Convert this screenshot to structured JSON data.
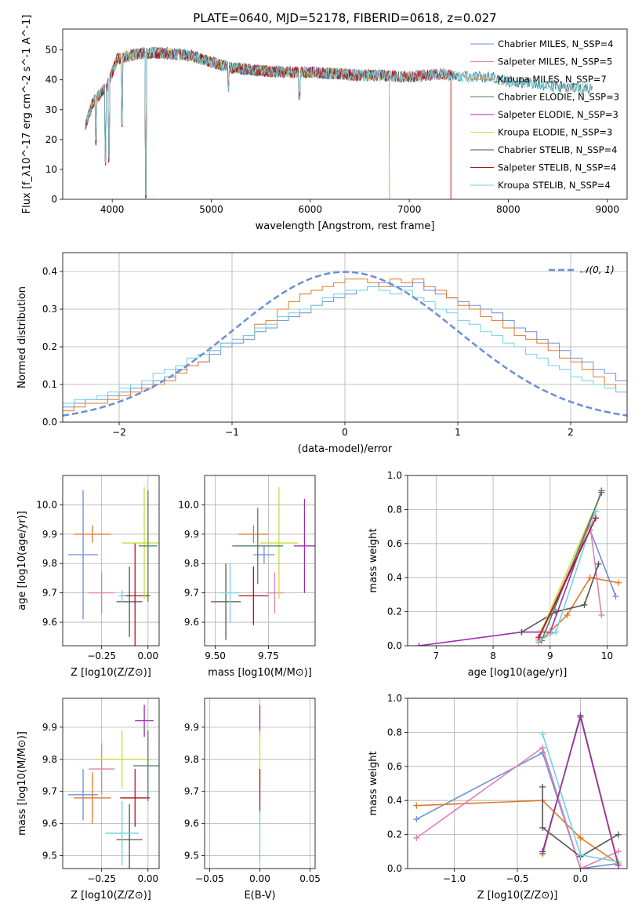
{
  "figure_title": "PLATE=0640, MJD=52178, FIBERID=0618, z=0.027",
  "colors": {
    "Chabrier MILES": "#6f8fd6",
    "Salpeter MILES": "#e37fb1",
    "Kroupa MILES": "#e0792a",
    "Chabrier ELODIE": "#4f7f5f",
    "Salpeter ELODIE": "#a12ab3",
    "Kroupa ELODIE": "#ccdb3d",
    "Chabrier STELIB": "#555555",
    "Salpeter STELIB": "#b3121a",
    "Kroupa STELIB": "#71d3de",
    "gaussian": "#6a8fd8",
    "grid": "#b0b0b0"
  },
  "chart_data": [
    {
      "type": "line",
      "id": "spectrum",
      "xlabel": "wavelength [Angstrom, rest frame]",
      "ylabel": "Flux [f_λ10^-17 erg cm^-2 s^-1 A^-1]",
      "xlim": [
        3500,
        9200
      ],
      "ylim": [
        0,
        57
      ],
      "xticks": [
        4000,
        5000,
        6000,
        7000,
        8000,
        9000
      ],
      "yticks": [
        0,
        10,
        20,
        30,
        40,
        50
      ],
      "grid": false,
      "legend_position": "top-right",
      "series": [
        {
          "name": "Chabrier MILES, N_SSP=4",
          "x_end": 7420
        },
        {
          "name": "Salpeter MILES, N_SSP=5",
          "x_end": 7420
        },
        {
          "name": "Kroupa MILES, N_SSP=7",
          "x_end": 7420
        },
        {
          "name": "Chabrier ELODIE, N_SSP=3",
          "x_end": 6800
        },
        {
          "name": "Salpeter ELODIE, N_SSP=3",
          "x_end": 6800
        },
        {
          "name": "Kroupa ELODIE, N_SSP=3",
          "x_end": 6800
        },
        {
          "name": "Chabrier STELIB, N_SSP=4",
          "x_end": 8850
        },
        {
          "name": "Salpeter STELIB, N_SSP=4",
          "x_end": 7420
        },
        {
          "name": "Kroupa STELIB, N_SSP=4",
          "x_end": 8850
        }
      ],
      "profile": {
        "x": [
          3730,
          3800,
          3950,
          4050,
          4300,
          4500,
          4800,
          5000,
          5200,
          5500,
          5800,
          6000,
          6300,
          6500,
          6700,
          7000,
          7300,
          7500,
          7800,
          8000,
          8300,
          8600,
          8850
        ],
        "y": [
          25,
          32,
          38,
          47,
          49,
          49,
          48,
          46,
          44,
          43,
          42.5,
          42.5,
          42,
          41.5,
          41.5,
          41,
          42,
          41,
          41,
          39.5,
          38.5,
          37.5,
          37
        ]
      },
      "absorption_lines": [
        {
          "x": 3933,
          "y": 11
        },
        {
          "x": 3968,
          "y": 12
        },
        {
          "x": 4101,
          "y": 24
        },
        {
          "x": 4340,
          "y": 0
        },
        {
          "x": 5175,
          "y": 36
        },
        {
          "x": 5890,
          "y": 33
        },
        {
          "x": 3835,
          "y": 18
        }
      ]
    },
    {
      "type": "histogram",
      "id": "residuals",
      "xlabel": "(data-model)/error",
      "ylabel": "Normed distribution",
      "xlim": [
        -2.5,
        2.5
      ],
      "ylim": [
        0,
        0.45
      ],
      "xticks": [
        -2,
        -1,
        0,
        1,
        2
      ],
      "yticks": [
        0.0,
        0.1,
        0.2,
        0.3,
        0.4
      ],
      "grid": true,
      "legend_position": "top-right",
      "reference_curve": {
        "name": "𝒩(0, 1)",
        "mean": 0,
        "sigma": 1
      },
      "bin_width": 0.1,
      "bins_from": -2.5,
      "series_values": {
        "Chabrier MILES": [
          0.04,
          0.05,
          0.06,
          0.06,
          0.07,
          0.08,
          0.09,
          0.1,
          0.11,
          0.12,
          0.14,
          0.15,
          0.16,
          0.18,
          0.2,
          0.21,
          0.22,
          0.24,
          0.25,
          0.27,
          0.28,
          0.29,
          0.31,
          0.32,
          0.33,
          0.34,
          0.35,
          0.36,
          0.37,
          0.36,
          0.36,
          0.37,
          0.35,
          0.34,
          0.33,
          0.32,
          0.31,
          0.3,
          0.29,
          0.27,
          0.25,
          0.24,
          0.22,
          0.21,
          0.19,
          0.17,
          0.16,
          0.14,
          0.13,
          0.11
        ],
        "Kroupa MILES": [
          0.03,
          0.04,
          0.05,
          0.05,
          0.06,
          0.07,
          0.08,
          0.09,
          0.1,
          0.11,
          0.13,
          0.15,
          0.16,
          0.19,
          0.21,
          0.22,
          0.23,
          0.26,
          0.27,
          0.3,
          0.32,
          0.34,
          0.35,
          0.36,
          0.37,
          0.38,
          0.38,
          0.37,
          0.36,
          0.38,
          0.37,
          0.38,
          0.36,
          0.35,
          0.33,
          0.31,
          0.3,
          0.28,
          0.27,
          0.25,
          0.23,
          0.22,
          0.21,
          0.19,
          0.17,
          0.16,
          0.14,
          0.12,
          0.1,
          0.08
        ],
        "Kroupa STELIB": [
          0.05,
          0.06,
          0.06,
          0.07,
          0.08,
          0.09,
          0.1,
          0.11,
          0.13,
          0.14,
          0.15,
          0.17,
          0.18,
          0.19,
          0.21,
          0.22,
          0.23,
          0.25,
          0.26,
          0.28,
          0.29,
          0.3,
          0.31,
          0.33,
          0.34,
          0.35,
          0.35,
          0.36,
          0.35,
          0.34,
          0.35,
          0.33,
          0.32,
          0.3,
          0.29,
          0.27,
          0.26,
          0.24,
          0.23,
          0.21,
          0.2,
          0.18,
          0.17,
          0.15,
          0.14,
          0.12,
          0.11,
          0.1,
          0.09,
          0.08
        ]
      }
    },
    {
      "type": "errorbar",
      "id": "age-vs-Z",
      "xlabel": "Z [log10(Z/Z⊙)]",
      "ylabel": "age [log10(age/yr)]",
      "xlim": [
        -0.46,
        0.06
      ],
      "ylim": [
        9.52,
        10.1
      ],
      "xticks": [
        -0.25,
        0.0
      ],
      "yticks": [
        9.6,
        9.7,
        9.8,
        9.9,
        10.0
      ],
      "grid": true,
      "points": [
        {
          "model": "Chabrier MILES",
          "x": -0.35,
          "xerr": 0.08,
          "y": 9.83,
          "yerr": 0.22
        },
        {
          "model": "Kroupa MILES",
          "x": -0.3,
          "xerr": 0.1,
          "y": 9.9,
          "yerr": 0.03
        },
        {
          "model": "Salpeter MILES",
          "x": -0.25,
          "xerr": 0.07,
          "y": 9.7,
          "yerr": 0.07
        },
        {
          "model": "Chabrier STELIB",
          "x": -0.1,
          "xerr": 0.07,
          "y": 9.67,
          "yerr": 0.12
        },
        {
          "model": "Salpeter STELIB",
          "x": -0.07,
          "xerr": 0.08,
          "y": 9.69,
          "yerr": 0.18
        },
        {
          "model": "Kroupa ELODIE",
          "x": -0.02,
          "xerr": 0.12,
          "y": 9.87,
          "yerr": 0.19
        },
        {
          "model": "Chabrier ELODIE",
          "x": 0.0,
          "xerr": 0.05,
          "y": 9.86,
          "yerr": 0.19
        },
        {
          "model": "Kroupa STELIB",
          "x": -0.14,
          "xerr": 0.02,
          "y": 9.69,
          "yerr": 0.02
        }
      ]
    },
    {
      "type": "errorbar",
      "id": "age-vs-mass",
      "xlabel": "mass [log10(M/M⊙)]",
      "ylabel": "",
      "xlim": [
        9.45,
        9.97
      ],
      "ylim": [
        9.52,
        10.1
      ],
      "xticks": [
        9.5,
        9.75
      ],
      "yticks": [
        9.6,
        9.7,
        9.8,
        9.9,
        10.0
      ],
      "grid": true,
      "points": [
        {
          "model": "Chabrier MILES",
          "x": 9.73,
          "xerr": 0.05,
          "y": 9.83,
          "yerr": 0.03
        },
        {
          "model": "Kroupa MILES",
          "x": 9.68,
          "xerr": 0.07,
          "y": 9.9,
          "yerr": 0.03
        },
        {
          "model": "Salpeter MILES",
          "x": 9.78,
          "xerr": 0.04,
          "y": 9.7,
          "yerr": 0.07
        },
        {
          "model": "Chabrier STELIB",
          "x": 9.55,
          "xerr": 0.07,
          "y": 9.67,
          "yerr": 0.13
        },
        {
          "model": "Salpeter STELIB",
          "x": 9.68,
          "xerr": 0.07,
          "y": 9.69,
          "yerr": 0.1
        },
        {
          "model": "Kroupa ELODIE",
          "x": 9.8,
          "xerr": 0.09,
          "y": 9.87,
          "yerr": 0.19
        },
        {
          "model": "Chabrier ELODIE",
          "x": 9.7,
          "xerr": 0.12,
          "y": 9.86,
          "yerr": 0.13
        },
        {
          "model": "Salpeter ELODIE",
          "x": 9.92,
          "xerr": 0.05,
          "y": 9.86,
          "yerr": 0.16
        },
        {
          "model": "Kroupa STELIB",
          "x": 9.57,
          "xerr": 0.05,
          "y": 9.7,
          "yerr": 0.1
        }
      ]
    },
    {
      "type": "line",
      "id": "weight-vs-age",
      "xlabel": "age [log10(age/yr)]",
      "ylabel": "mass weight",
      "xlim": [
        6.5,
        10.35
      ],
      "ylim": [
        0,
        1.0
      ],
      "xticks": [
        7,
        8,
        9,
        10
      ],
      "yticks": [
        0.0,
        0.2,
        0.4,
        0.6,
        0.8,
        1.0
      ],
      "grid": true,
      "series": [
        {
          "name": "Salpeter ELODIE",
          "x": [
            6.7,
            8.5,
            9.0,
            9.9
          ],
          "y": [
            0.0,
            0.08,
            0.08,
            0.91
          ]
        },
        {
          "name": "Chabrier MILES",
          "x": [
            8.8,
            9.7,
            10.15
          ],
          "y": [
            0.04,
            0.68,
            0.29
          ]
        },
        {
          "name": "Kroupa MILES",
          "x": [
            8.8,
            9.3,
            9.7,
            10.2
          ],
          "y": [
            0.02,
            0.18,
            0.4,
            0.37
          ]
        },
        {
          "name": "Salpeter MILES",
          "x": [
            8.8,
            9.7,
            9.9
          ],
          "y": [
            0.04,
            0.71,
            0.18
          ]
        },
        {
          "name": "Chabrier STELIB",
          "x": [
            8.5,
            9.1,
            9.6,
            9.85
          ],
          "y": [
            0.08,
            0.2,
            0.24,
            0.48
          ]
        },
        {
          "name": "Kroupa ELODIE",
          "x": [
            8.85,
            9.9
          ],
          "y": [
            0.09,
            0.9
          ]
        },
        {
          "name": "Chabrier ELODIE",
          "x": [
            8.85,
            9.9
          ],
          "y": [
            0.03,
            0.9
          ]
        },
        {
          "name": "Kroupa STELIB",
          "x": [
            8.8,
            9.1,
            9.8
          ],
          "y": [
            0.03,
            0.08,
            0.79
          ]
        },
        {
          "name": "Salpeter STELIB",
          "x": [
            8.8,
            9.8
          ],
          "y": [
            0.05,
            0.75
          ]
        }
      ]
    },
    {
      "type": "errorbar",
      "id": "mass-vs-Z",
      "xlabel": "Z [log10(Z/Z⊙)]",
      "ylabel": "mass [log10(M/M⊙)]",
      "xlim": [
        -0.46,
        0.06
      ],
      "ylim": [
        9.46,
        9.99
      ],
      "xticks": [
        -0.25,
        0.0
      ],
      "yticks": [
        9.5,
        9.6,
        9.7,
        9.8,
        9.9
      ],
      "grid": true,
      "points": [
        {
          "model": "Chabrier MILES",
          "x": -0.35,
          "xerr": 0.08,
          "y": 9.69,
          "yerr": 0.08
        },
        {
          "model": "Kroupa MILES",
          "x": -0.3,
          "xerr": 0.1,
          "y": 9.68,
          "yerr": 0.08
        },
        {
          "model": "Salpeter MILES",
          "x": -0.25,
          "xerr": 0.07,
          "y": 9.77,
          "yerr": 0.08
        },
        {
          "model": "Chabrier STELIB",
          "x": -0.1,
          "xerr": 0.07,
          "y": 9.55,
          "yerr": 0.11
        },
        {
          "model": "Salpeter STELIB",
          "x": -0.07,
          "xerr": 0.08,
          "y": 9.68,
          "yerr": 0.09
        },
        {
          "model": "Kroupa ELODIE",
          "x": -0.14,
          "xerr": 0.15,
          "y": 9.8,
          "yerr": 0.09
        },
        {
          "model": "Chabrier ELODIE",
          "x": 0.0,
          "xerr": 0.08,
          "y": 9.78,
          "yerr": 0.11
        },
        {
          "model": "Salpeter ELODIE",
          "x": -0.02,
          "xerr": 0.05,
          "y": 9.92,
          "yerr": 0.05
        },
        {
          "model": "Kroupa STELIB",
          "x": -0.14,
          "xerr": 0.09,
          "y": 9.57,
          "yerr": 0.1
        }
      ]
    },
    {
      "type": "errorbar",
      "id": "mass-vs-EBV",
      "xlabel": "E(B-V)",
      "ylabel": "",
      "xlim": [
        -0.055,
        0.055
      ],
      "ylim": [
        9.46,
        9.99
      ],
      "xticks": [
        -0.05,
        0.0,
        0.05
      ],
      "yticks": [
        9.5,
        9.6,
        9.7,
        9.8,
        9.9
      ],
      "grid": true,
      "points": [
        {
          "model": "Salpeter ELODIE",
          "x": 0.0,
          "xerr": 0,
          "y": 9.92,
          "yerr": 0.05
        },
        {
          "model": "Kroupa ELODIE",
          "x": 0.0,
          "xerr": 0,
          "y": 9.8,
          "yerr": 0.09
        },
        {
          "model": "Salpeter STELIB",
          "x": 0.0,
          "xerr": 0,
          "y": 9.7,
          "yerr": 0.07
        },
        {
          "model": "Kroupa STELIB",
          "x": 0.0,
          "xerr": 0,
          "y": 9.56,
          "yerr": 0.08
        }
      ]
    },
    {
      "type": "line",
      "id": "weight-vs-Z",
      "xlabel": "Z [log10(Z/Z⊙)]",
      "ylabel": "mass weight",
      "xlim": [
        -1.37,
        0.37
      ],
      "ylim": [
        0,
        1.0
      ],
      "xticks": [
        -1.0,
        -0.5,
        0.0
      ],
      "yticks": [
        0.0,
        0.2,
        0.4,
        0.6,
        0.8,
        1.0
      ],
      "grid": true,
      "series": [
        {
          "name": "Chabrier MILES",
          "x": [
            -1.3,
            -0.3,
            0.0,
            0.3
          ],
          "y": [
            0.29,
            0.68,
            0.0,
            0.03
          ]
        },
        {
          "name": "Kroupa MILES",
          "x": [
            -1.3,
            -0.3,
            0.0,
            0.3
          ],
          "y": [
            0.37,
            0.4,
            0.18,
            0.03
          ]
        },
        {
          "name": "Salpeter MILES",
          "x": [
            -1.3,
            -0.3,
            0.0,
            0.3
          ],
          "y": [
            0.18,
            0.71,
            0.0,
            0.1
          ]
        },
        {
          "name": "Chabrier STELIB",
          "x": [
            -0.3,
            -0.3,
            0.0,
            0.3
          ],
          "y": [
            0.48,
            0.24,
            0.07,
            0.2
          ]
        },
        {
          "name": "Kroupa ELODIE",
          "x": [
            -0.3,
            0.0,
            0.3
          ],
          "y": [
            0.08,
            0.9,
            0.03
          ]
        },
        {
          "name": "Chabrier ELODIE",
          "x": [
            -0.3,
            0.0,
            0.3
          ],
          "y": [
            0.09,
            0.9,
            0.02
          ]
        },
        {
          "name": "Kroupa STELIB",
          "x": [
            -0.3,
            0.0,
            0.3
          ],
          "y": [
            0.79,
            0.08,
            0.04
          ]
        },
        {
          "name": "Salpeter ELODIE",
          "x": [
            -0.3,
            0.0,
            0.3
          ],
          "y": [
            0.1,
            0.89,
            0.02
          ]
        }
      ]
    }
  ]
}
